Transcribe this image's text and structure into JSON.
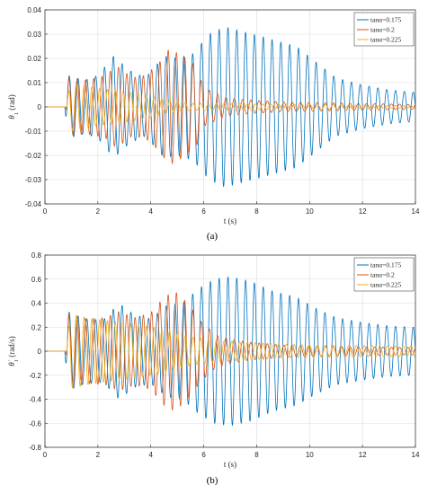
{
  "chart_data": [
    {
      "type": "line",
      "caption": "(a)",
      "xlabel": "t (s)",
      "ylabel_main": "θ",
      "ylabel_sub": "1",
      "ylabel_unit": " (rad)",
      "xlim": [
        0,
        14
      ],
      "ylim": [
        -0.04,
        0.04
      ],
      "xticks": [
        0,
        2,
        4,
        6,
        8,
        10,
        12,
        14
      ],
      "yticks": [
        -0.04,
        -0.03,
        -0.02,
        -0.01,
        0,
        0.01,
        0.02,
        0.03,
        0.04
      ],
      "ytick_labels": [
        "-0.04",
        "-0.03",
        "-0.02",
        "-0.01",
        "0",
        "0.01",
        "0.02",
        "0.03",
        "0.04"
      ],
      "grid": true,
      "legend_position": "top-right",
      "series": [
        {
          "name": "tanα=0.175",
          "color": "#0072BD",
          "onset": 0.75,
          "freq": 3.0,
          "envelope": [
            [
              0.75,
              0
            ],
            [
              0.85,
              0.013
            ],
            [
              1.5,
              0.011
            ],
            [
              2.0,
              0.013
            ],
            [
              2.6,
              0.021
            ],
            [
              3.2,
              0.015
            ],
            [
              3.8,
              0.012
            ],
            [
              4.5,
              0.021
            ],
            [
              5.0,
              0.02
            ],
            [
              5.6,
              0.022
            ],
            [
              6.2,
              0.03
            ],
            [
              6.8,
              0.033
            ],
            [
              7.5,
              0.031
            ],
            [
              8.2,
              0.029
            ],
            [
              8.8,
              0.027
            ],
            [
              9.5,
              0.025
            ],
            [
              10.3,
              0.018
            ],
            [
              11.0,
              0.012
            ],
            [
              12.0,
              0.009
            ],
            [
              13.0,
              0.007
            ],
            [
              14.0,
              0.006
            ]
          ]
        },
        {
          "name": "tanα=0.2",
          "color": "#D95319",
          "onset": 0.78,
          "freq": 3.2,
          "envelope": [
            [
              0.78,
              0
            ],
            [
              0.9,
              0.012
            ],
            [
              1.6,
              0.011
            ],
            [
              2.3,
              0.013
            ],
            [
              2.7,
              0.017
            ],
            [
              3.3,
              0.012
            ],
            [
              3.8,
              0.013
            ],
            [
              4.3,
              0.018
            ],
            [
              4.7,
              0.024
            ],
            [
              5.2,
              0.021
            ],
            [
              5.7,
              0.017
            ],
            [
              6.0,
              0.008
            ],
            [
              6.8,
              0.004
            ],
            [
              7.5,
              0.003
            ],
            [
              9.0,
              0.002
            ],
            [
              14.0,
              0.001
            ]
          ]
        },
        {
          "name": "tanα=0.225",
          "color": "#EDB120",
          "onset": 0.8,
          "freq": 3.4,
          "envelope": [
            [
              0.8,
              0
            ],
            [
              0.95,
              0.01
            ],
            [
              1.8,
              0.008
            ],
            [
              2.5,
              0.007
            ],
            [
              3.2,
              0.006
            ],
            [
              3.8,
              0.005
            ],
            [
              4.5,
              0.003
            ],
            [
              5.5,
              0.0015
            ],
            [
              14.0,
              0.0005
            ]
          ]
        }
      ]
    },
    {
      "type": "line",
      "caption": "(b)",
      "xlabel": "t (s)",
      "ylabel_main": "θ̇",
      "ylabel_sub": "1",
      "ylabel_unit": " (rad/s)",
      "xlim": [
        0,
        14
      ],
      "ylim": [
        -0.8,
        0.8
      ],
      "xticks": [
        0,
        2,
        4,
        6,
        8,
        10,
        12,
        14
      ],
      "yticks": [
        -0.8,
        -0.6,
        -0.4,
        -0.2,
        0,
        0.2,
        0.4,
        0.6,
        0.8
      ],
      "ytick_labels": [
        "-0.8",
        "-0.6",
        "-0.4",
        "-0.2",
        "0",
        "0.2",
        "0.4",
        "0.6",
        "0.8"
      ],
      "grid": true,
      "legend_position": "top-right",
      "series": [
        {
          "name": "tanα=0.175",
          "color": "#0072BD",
          "onset": 0.75,
          "freq": 3.0,
          "envelope": [
            [
              0.75,
              0
            ],
            [
              0.85,
              0.33
            ],
            [
              1.5,
              0.27
            ],
            [
              2.2,
              0.26
            ],
            [
              2.8,
              0.4
            ],
            [
              3.4,
              0.3
            ],
            [
              4.0,
              0.27
            ],
            [
              4.6,
              0.38
            ],
            [
              5.2,
              0.4
            ],
            [
              5.8,
              0.52
            ],
            [
              6.4,
              0.6
            ],
            [
              7.0,
              0.62
            ],
            [
              7.8,
              0.58
            ],
            [
              8.6,
              0.5
            ],
            [
              9.5,
              0.45
            ],
            [
              10.3,
              0.35
            ],
            [
              11.0,
              0.28
            ],
            [
              12.0,
              0.24
            ],
            [
              13.0,
              0.21
            ],
            [
              14.0,
              0.2
            ]
          ]
        },
        {
          "name": "tanα=0.2",
          "color": "#D95319",
          "onset": 0.78,
          "freq": 3.2,
          "envelope": [
            [
              0.78,
              0
            ],
            [
              0.9,
              0.3
            ],
            [
              1.6,
              0.27
            ],
            [
              2.3,
              0.28
            ],
            [
              2.8,
              0.33
            ],
            [
              3.4,
              0.28
            ],
            [
              4.0,
              0.32
            ],
            [
              4.5,
              0.45
            ],
            [
              4.9,
              0.5
            ],
            [
              5.4,
              0.4
            ],
            [
              5.9,
              0.25
            ],
            [
              6.5,
              0.13
            ],
            [
              7.5,
              0.08
            ],
            [
              9.0,
              0.05
            ],
            [
              11.0,
              0.04
            ],
            [
              14.0,
              0.03
            ]
          ]
        },
        {
          "name": "tanα=0.225",
          "color": "#EDB120",
          "onset": 0.8,
          "freq": 3.4,
          "envelope": [
            [
              0.8,
              0
            ],
            [
              0.95,
              0.31
            ],
            [
              1.8,
              0.27
            ],
            [
              2.5,
              0.25
            ],
            [
              3.2,
              0.23
            ],
            [
              3.8,
              0.21
            ],
            [
              4.5,
              0.18
            ],
            [
              5.5,
              0.12
            ],
            [
              6.5,
              0.09
            ],
            [
              8.0,
              0.07
            ],
            [
              10.0,
              0.05
            ],
            [
              14.0,
              0.045
            ]
          ]
        }
      ]
    }
  ]
}
